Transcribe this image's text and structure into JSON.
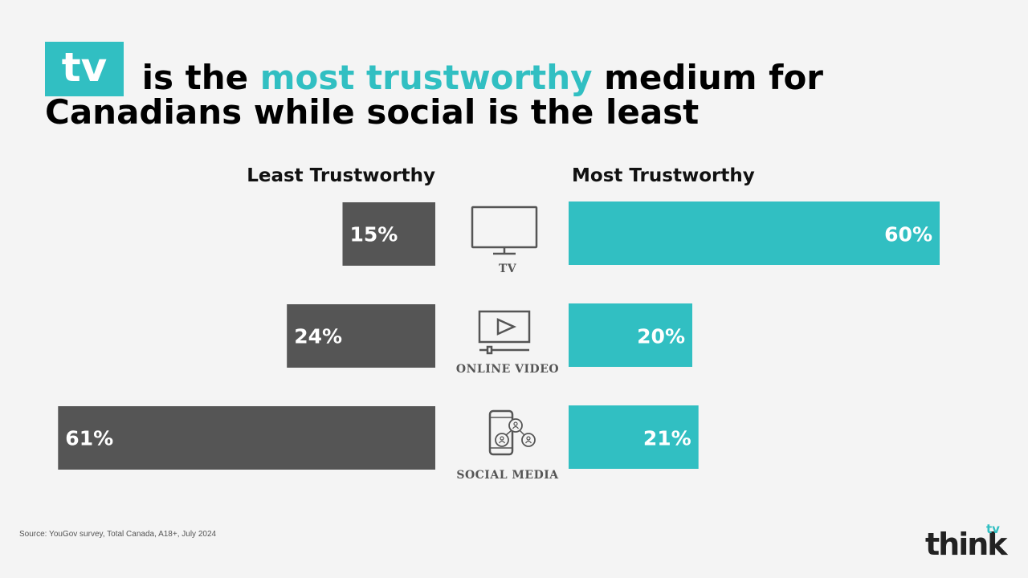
{
  "title": {
    "badge": "tv",
    "part1": " is the ",
    "highlight": "most trustworthy",
    "part2": " medium for",
    "line2": "Canadians while social is the least"
  },
  "chart_data": {
    "type": "bar",
    "orientation": "diverging-horizontal",
    "categories": [
      "TV",
      "ONLINE VIDEO",
      "SOCIAL MEDIA"
    ],
    "icons": [
      "tv-icon",
      "online-video-icon",
      "social-media-icon"
    ],
    "series": [
      {
        "name": "Least Trustworthy",
        "values": [
          15,
          24,
          61
        ],
        "labels": [
          "15%",
          "24%",
          "61%"
        ],
        "color": "#555555"
      },
      {
        "name": "Most Trustworthy",
        "values": [
          60,
          20,
          21
        ],
        "labels": [
          "60%",
          "20%",
          "21%"
        ],
        "color": "#31bfc2"
      }
    ],
    "unit": "%"
  },
  "source": "Source: YouGov survey, Total Canada, A18+, July 2024",
  "logo": {
    "main": "think",
    "sup": "tv"
  },
  "colors": {
    "accent": "#31bfc2",
    "dark_bar": "#555555",
    "background": "#f4f4f4"
  }
}
